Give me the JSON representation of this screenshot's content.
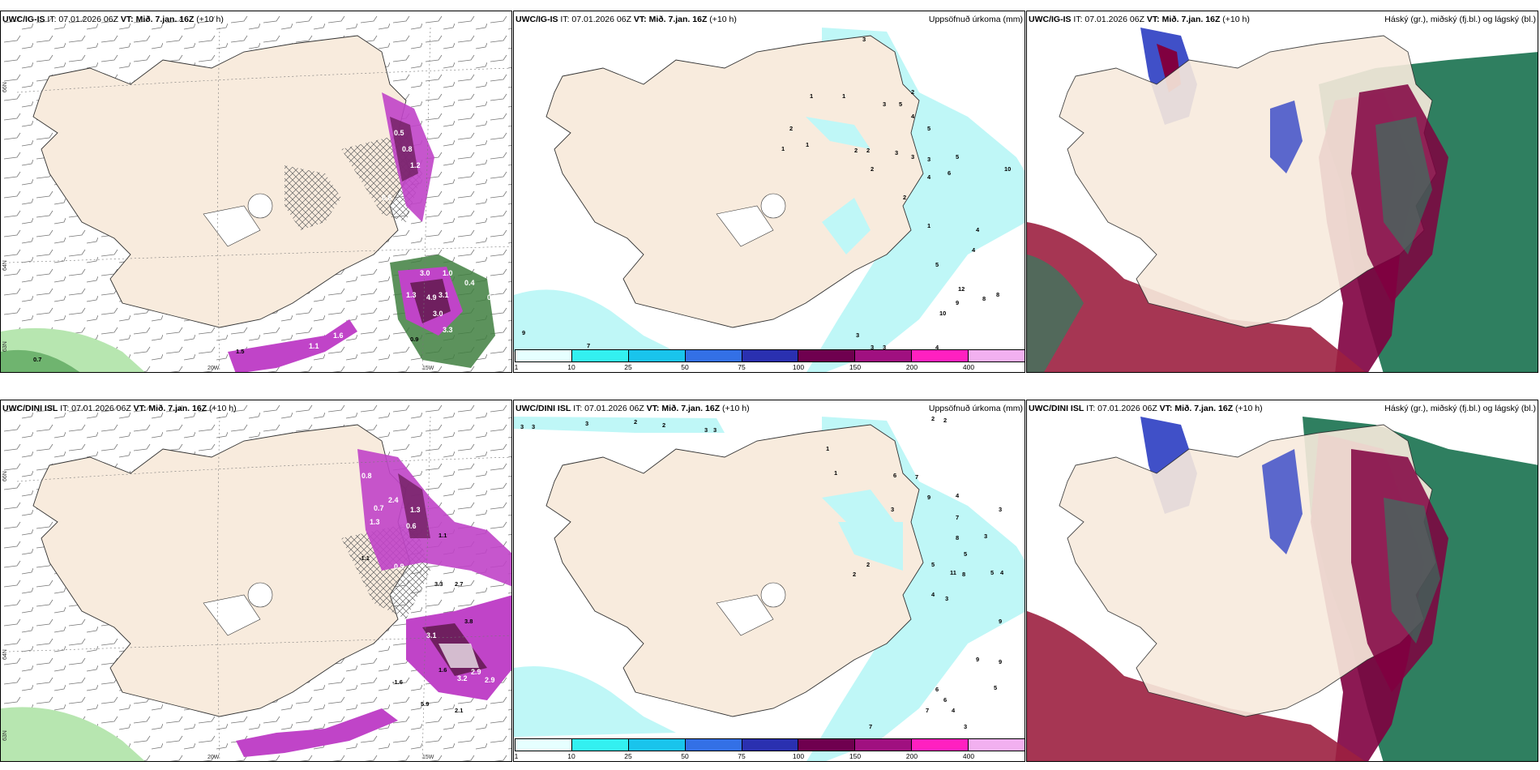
{
  "meta": {
    "initial_time": "IT: 07.01.2026 06Z",
    "vt_label": "VT:",
    "vt_value": "Mið. 7.jan. 16Z",
    "lead": "(+10 h)"
  },
  "colors": {
    "land": "#f8ebdd",
    "precip_light": "#bff7f7",
    "magenta": "#c044c8",
    "purple": "#6f1f5f",
    "green_light": "#b7e6b0",
    "green_dark": "#3f7f3f",
    "cloud_high": "#800040",
    "cloud_mid": "#4050c8",
    "cloud_low": "#2f7f60"
  },
  "panels": [
    {
      "model": "UWC/IG-IS",
      "title": "",
      "type": "wind",
      "lat_labels": [
        "66N",
        "64N",
        "63N"
      ],
      "lon_labels": [
        "20W",
        "15W"
      ],
      "values": [
        "0.5",
        "0.8",
        "1.2",
        "0.6",
        "3.0",
        "1.0",
        "0.4",
        "1.3",
        "3.1",
        "4.9",
        "3.0",
        "0.5",
        "0.9",
        "1.6",
        "1.1",
        "0.7",
        "1.5",
        "3.3"
      ]
    },
    {
      "model": "UWC/IG-IS",
      "title": "Uppsöfnuð úrkoma (mm)",
      "type": "precip",
      "legend": [
        "1",
        "10",
        "25",
        "50",
        "75",
        "100",
        "150",
        "200",
        "400"
      ],
      "values": [
        "3",
        "1",
        "1",
        "2",
        "1",
        "1",
        "2",
        "2",
        "3",
        "5",
        "2",
        "4",
        "5",
        "3",
        "2",
        "3",
        "3",
        "4",
        "5",
        "6",
        "2",
        "10",
        "1",
        "4",
        "5",
        "4",
        "12",
        "8",
        "8",
        "10",
        "9",
        "3",
        "3",
        "3",
        "4",
        "9",
        "7"
      ]
    },
    {
      "model": "UWC/IG-IS",
      "title": "Háský (gr.), miðský (fj.bl.) og lágský (bl.)",
      "type": "cloud"
    },
    {
      "model": "UWC/DINI ISL",
      "title": "",
      "type": "wind",
      "lat_labels": [
        "66N",
        "64N",
        "63N"
      ],
      "lon_labels": [
        "20W",
        "15W"
      ],
      "values": [
        "0.8",
        "2.4",
        "1.3",
        "0.7",
        "1.3",
        "0.6",
        "1.1",
        "0.9",
        "3.3",
        "2.7",
        "3.1",
        "3.8",
        "2.9",
        "3.2",
        "2.9",
        "1.6",
        "5.9",
        "2.1",
        "-1.1",
        "-1.6"
      ]
    },
    {
      "model": "UWC/DINI ISL",
      "title": "Uppsöfnuð úrkoma (mm)",
      "type": "precip",
      "legend": [
        "1",
        "10",
        "25",
        "50",
        "75",
        "100",
        "150",
        "200",
        "400"
      ],
      "values": [
        "3",
        "3",
        "3",
        "2",
        "2",
        "3",
        "3",
        "2",
        "2",
        "1",
        "1",
        "6",
        "7",
        "9",
        "4",
        "7",
        "3",
        "3",
        "8",
        "5",
        "3",
        "2",
        "2",
        "5",
        "11",
        "8",
        "5",
        "4",
        "4",
        "3",
        "9",
        "9",
        "9",
        "5",
        "6",
        "6",
        "7",
        "4",
        "7",
        "3"
      ]
    },
    {
      "model": "UWC/DINI ISL",
      "title": "Háský (gr.), miðský (fj.bl.) og lágský (bl.)",
      "type": "cloud"
    }
  ]
}
